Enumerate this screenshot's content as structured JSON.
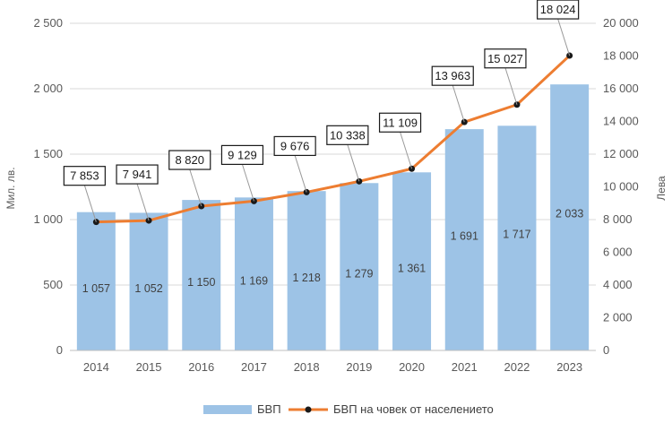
{
  "chart_data": {
    "type": "bar",
    "categories": [
      "2014",
      "2015",
      "2016",
      "2017",
      "2018",
      "2019",
      "2020",
      "2021",
      "2022",
      "2023"
    ],
    "series": [
      {
        "name": "БВП",
        "type": "bar",
        "axis": "left",
        "values": [
          1057,
          1052,
          1150,
          1169,
          1218,
          1279,
          1361,
          1691,
          1717,
          2033
        ],
        "labels": [
          "1 057",
          "1 052",
          "1 150",
          "1 169",
          "1 218",
          "1 279",
          "1 361",
          "1 691",
          "1 717",
          "2 033"
        ],
        "color": "#9dc3e6"
      },
      {
        "name": "БВП на човек от населението",
        "type": "line",
        "axis": "right",
        "values": [
          7853,
          7941,
          8820,
          9129,
          9676,
          10338,
          11109,
          13963,
          15027,
          18024
        ],
        "labels": [
          "7 853",
          "7 941",
          "8 820",
          "9 129",
          "9 676",
          "10 338",
          "11 109",
          "13 963",
          "15 027",
          "18 024"
        ],
        "color": "#ed7d31",
        "marker_color": "#1a1a1a"
      }
    ],
    "ylabel": "Мил. лв.",
    "y2label": "Лева",
    "ylim": [
      0,
      2500
    ],
    "y2lim": [
      0,
      20000
    ],
    "yticks": [
      "0",
      "500",
      "1 000",
      "1 500",
      "2 000",
      "2 500"
    ],
    "y2ticks": [
      "0",
      "2 000",
      "4 000",
      "6 000",
      "8 000",
      "10 000",
      "12 000",
      "14 000",
      "16 000",
      "18 000",
      "20 000"
    ],
    "grid": true,
    "legend": "bottom"
  }
}
